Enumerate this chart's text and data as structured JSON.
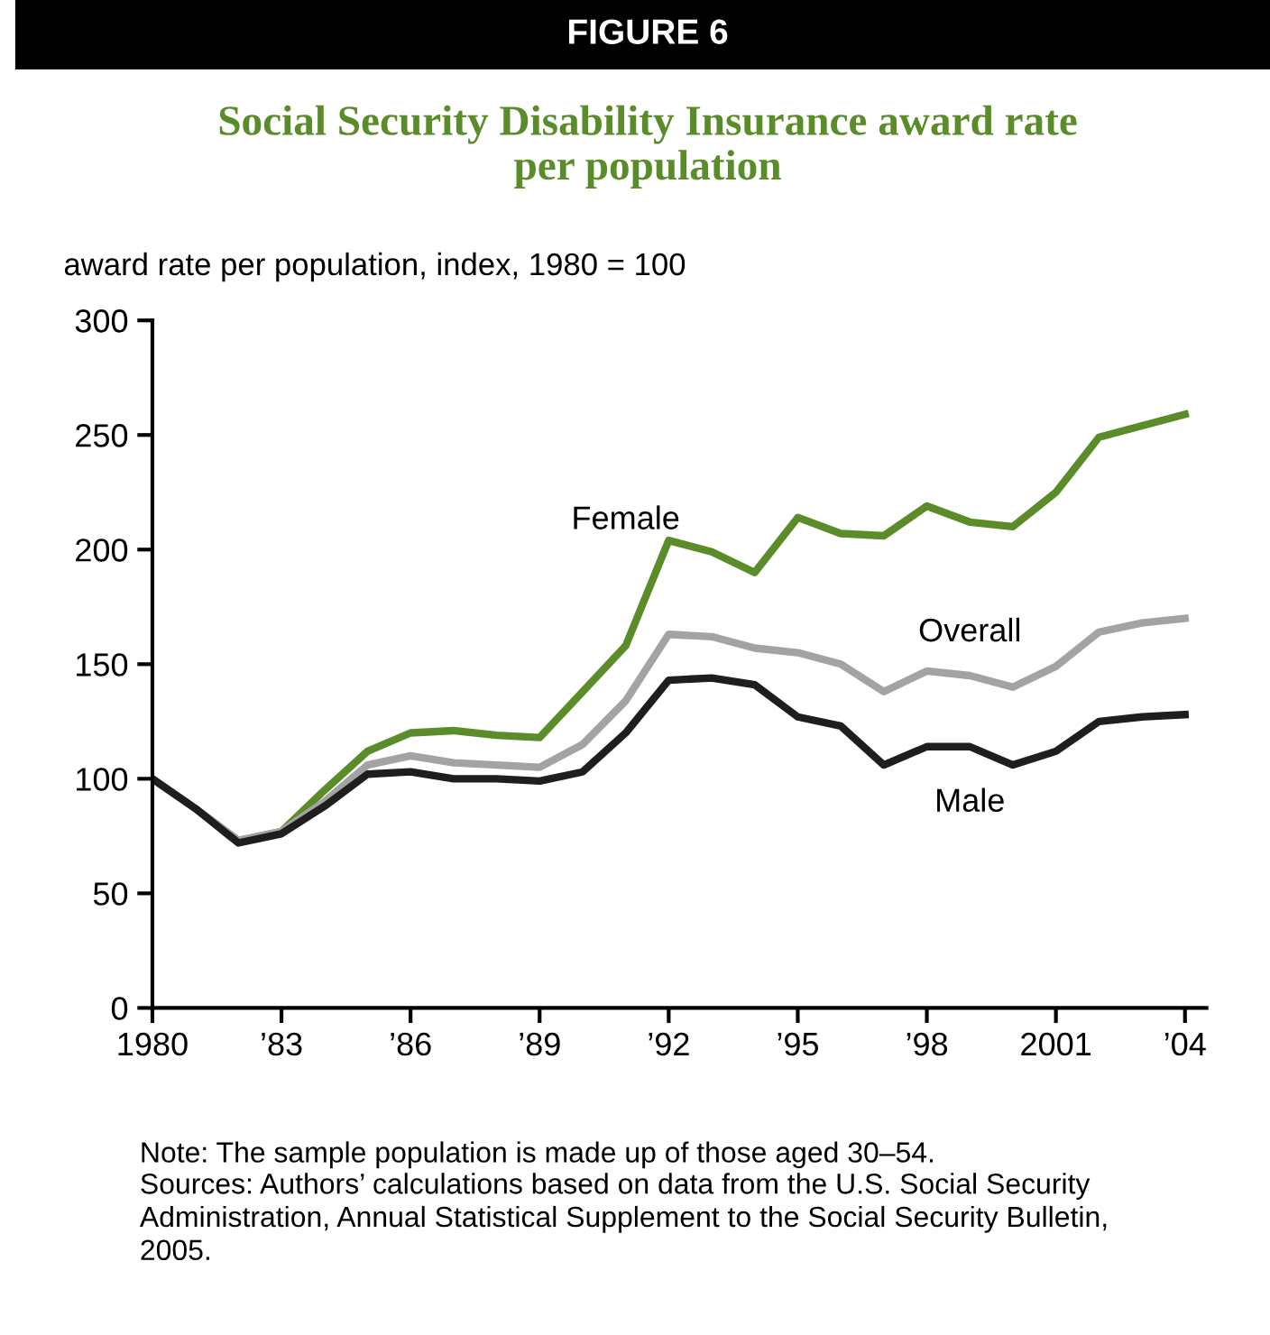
{
  "chart_data": {
    "type": "line",
    "subtitle": "FIGURE 6",
    "title": "Social Security Disability Insurance award rate\nper population",
    "ylabel": "award rate per population, index, 1980 = 100",
    "x": [
      1980,
      1981,
      1982,
      1983,
      1984,
      1985,
      1986,
      1987,
      1988,
      1989,
      1990,
      1991,
      1992,
      1993,
      1994,
      1995,
      1996,
      1997,
      1998,
      1999,
      2000,
      2001,
      2002,
      2003,
      2004
    ],
    "series": [
      {
        "name": "Female",
        "color": "#5b8c2a",
        "values": [
          100,
          87,
          73,
          77,
          95,
          112,
          120,
          121,
          119,
          118,
          138,
          158,
          204,
          199,
          190,
          214,
          207,
          206,
          219,
          212,
          210,
          225,
          249,
          254,
          259
        ]
      },
      {
        "name": "Overall",
        "color": "#a3a3a3",
        "values": [
          100,
          87,
          73,
          77,
          90,
          106,
          110,
          107,
          106,
          105,
          115,
          134,
          163,
          162,
          157,
          155,
          150,
          138,
          147,
          145,
          140,
          149,
          164,
          168,
          170
        ]
      },
      {
        "name": "Male",
        "color": "#1e1e1e",
        "values": [
          100,
          87,
          72,
          76,
          88,
          102,
          103,
          100,
          100,
          99,
          103,
          120,
          143,
          144,
          141,
          127,
          123,
          106,
          114,
          114,
          106,
          112,
          125,
          127,
          128
        ]
      }
    ],
    "xlim": [
      1980,
      2004.5
    ],
    "xticks": [
      1980,
      {
        "value": 1983,
        "label": "’83"
      },
      {
        "value": 1986,
        "label": "’86"
      },
      {
        "value": 1989,
        "label": "’89"
      },
      {
        "value": 1992,
        "label": "’92"
      },
      {
        "value": 1995,
        "label": "’95"
      },
      {
        "value": 1998,
        "label": "’98"
      },
      2001,
      {
        "value": 2004,
        "label": "’04"
      }
    ],
    "ylim": [
      0,
      300
    ],
    "yticks": [
      0,
      50,
      100,
      150,
      200,
      250,
      300
    ],
    "grid": false,
    "legend": false,
    "marker": "none",
    "line_style": "solid",
    "annotations": [
      "Note: The sample population is made up of those aged 30–54.",
      "Sources: Authors’ calculations based on data from the U.S. Social Security\nAdministration, Annual Statistical Supplement to the Social Security Bulletin,\n2005."
    ]
  }
}
